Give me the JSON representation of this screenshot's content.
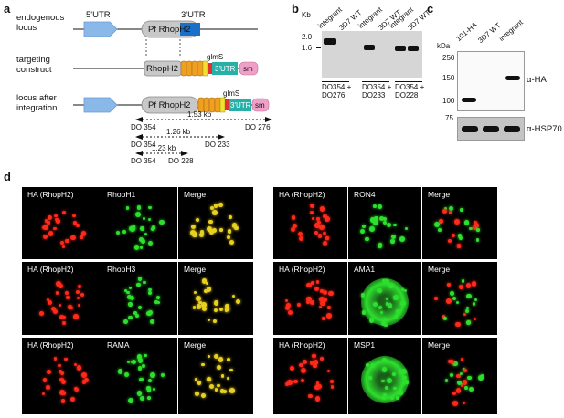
{
  "panel_labels": {
    "a": "a",
    "b": "b",
    "c": "c",
    "d": "d"
  },
  "panel_a": {
    "rows": {
      "endogenous": "endogenous\nlocus",
      "targeting": "targeting\nconstruct",
      "after": "locus after\nintegration"
    },
    "utr5": "5'UTR",
    "utr3": "3'UTR",
    "gene": "Pf RhopH2",
    "gene_short": "RhopH2",
    "glms": "glmS",
    "utr3_box": "3'UTR",
    "sm": "sm",
    "tags": [
      "H",
      "H",
      "H"
    ],
    "amplicons": [
      {
        "size": "1.53 kb",
        "fwd": "DO 354",
        "rev": "DO 276"
      },
      {
        "size": "1.26 kb",
        "fwd": "DO 354",
        "rev": "DO 233"
      },
      {
        "size": "1.23 kb",
        "fwd": "DO 354",
        "rev": "DO 228"
      }
    ]
  },
  "panel_b": {
    "kb": "Kb",
    "markers": [
      "2.0",
      "1.6"
    ],
    "lanes": [
      "integrant",
      "3D7 WT",
      "integrant",
      "3D7 WT",
      "integrant",
      "3D7 WT"
    ],
    "groups": [
      "DO354 +\nDO276",
      "DO354 +\nDO233",
      "DO354 +\nDO228"
    ]
  },
  "panel_c": {
    "kda": "kDa",
    "markers": [
      "250",
      "150",
      "100",
      "75"
    ],
    "lanes": [
      "101-HA",
      "3D7 WT",
      "integrant"
    ],
    "ab1": "α-HA",
    "ab2": "α-HSP70"
  },
  "panel_d": {
    "left": [
      {
        "labels": [
          "HA (RhopH2)",
          "RhopH1",
          "Merge"
        ]
      },
      {
        "labels": [
          "HA (RhopH2)",
          "RhopH3",
          "Merge"
        ]
      },
      {
        "labels": [
          "HA (RhopH2)",
          "RAMA",
          "Merge"
        ]
      }
    ],
    "right": [
      {
        "labels": [
          "HA (RhopH2)",
          "RON4",
          "Merge"
        ]
      },
      {
        "labels": [
          "HA (RhopH2)",
          "AMA1",
          "Merge"
        ]
      },
      {
        "labels": [
          "HA (RhopH2)",
          "MSP1",
          "Merge"
        ]
      }
    ],
    "colors": {
      "red": "#ff2a1a",
      "green": "#2ee02e",
      "yellow": "#e8d020"
    }
  }
}
